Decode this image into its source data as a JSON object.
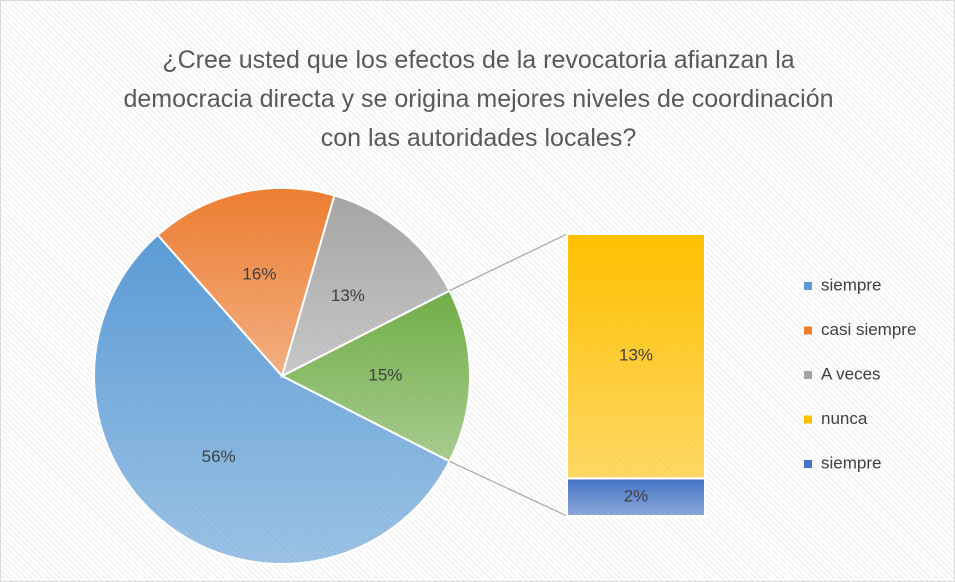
{
  "chart_data": {
    "type": "bar-of-pie",
    "title": "¿Cree usted que los efectos de la revocatoria afianzan la democracia directa y se origina mejores niveles de coordinación con las autoridades locales?",
    "pie": {
      "categories": [
        "siempre",
        "casi siempre",
        "A veces"
      ],
      "values": [
        56,
        16,
        13
      ],
      "value_labels": [
        "56%",
        "16%",
        "13%"
      ],
      "colors": [
        "#5b9bd5",
        "#ed7d31",
        "#a5a5a5"
      ],
      "other_value": 15,
      "other_label": "15%",
      "other_color": "#70ad47"
    },
    "bar": {
      "categories": [
        "nunca",
        "siempre"
      ],
      "values": [
        13,
        2
      ],
      "value_labels": [
        "13%",
        "2%"
      ],
      "colors": [
        "#ffc000",
        "#4472c4"
      ]
    }
  }
}
